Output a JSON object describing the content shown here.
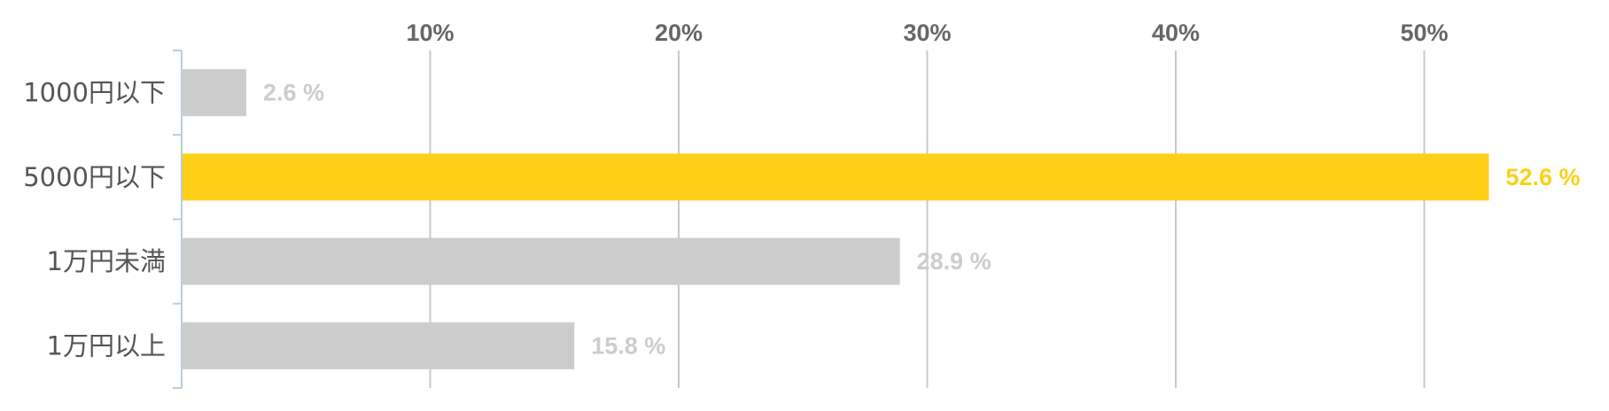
{
  "chart_data": {
    "type": "bar",
    "orientation": "horizontal",
    "categories": [
      "1000円以下",
      "5000円以下",
      "1万円未満",
      "1万円以上"
    ],
    "values": [
      2.6,
      52.6,
      28.9,
      15.8
    ],
    "value_labels": [
      "2.6 %",
      "52.6 %",
      "28.9 %",
      "15.8 %"
    ],
    "xlim": [
      0,
      57
    ],
    "x_ticks": [
      10,
      20,
      30,
      40,
      50
    ],
    "x_tick_labels": [
      "10%",
      "20%",
      "30%",
      "40%",
      "50%"
    ],
    "x_tick_position": "top",
    "grid": true,
    "highlight_index": 1,
    "colors": {
      "bar_default": "#cccccc",
      "bar_highlight": "#fdd017",
      "label_default": "#cccccc",
      "label_highlight": "#fdd017",
      "grid": "#c8c8c8",
      "axis": "#b8cde0",
      "tick_text": "#666666",
      "category_text": "#555555"
    }
  }
}
